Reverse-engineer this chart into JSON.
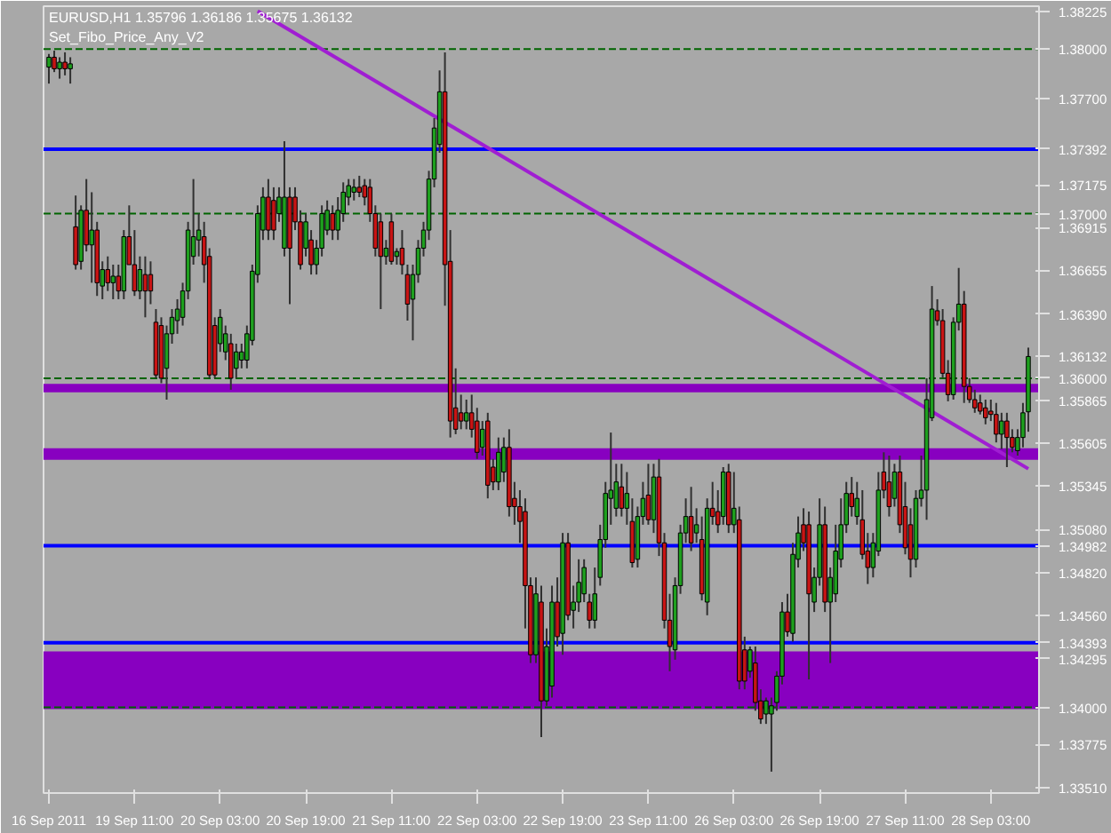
{
  "chart_data": {
    "type": "candlestick",
    "title": "EURUSD,H1  1.35796 1.36186 1.35675 1.36132",
    "subtitle": "Set_Fibo_Price_Any_V2",
    "categories": [
      "16 Sep 2011",
      null,
      null,
      null,
      null,
      null,
      null,
      null,
      null,
      null,
      null,
      null,
      null,
      null,
      null,
      null,
      "19 Sep 11:00",
      null,
      null,
      null,
      null,
      null,
      null,
      null,
      null,
      null,
      null,
      null,
      null,
      null,
      null,
      null,
      "20 Sep 03:00",
      null,
      null,
      null,
      null,
      null,
      null,
      null,
      null,
      null,
      null,
      null,
      null,
      null,
      null,
      null,
      "20 Sep 19:00",
      null,
      null,
      null,
      null,
      null,
      null,
      null,
      null,
      null,
      null,
      null,
      null,
      null,
      null,
      null,
      "21 Sep 11:00",
      null,
      null,
      null,
      null,
      null,
      null,
      null,
      null,
      null,
      null,
      null,
      null,
      null,
      null,
      null,
      "22 Sep 03:00",
      null,
      null,
      null,
      null,
      null,
      null,
      null,
      null,
      null,
      null,
      null,
      null,
      null,
      null,
      null,
      "22 Sep 19:00",
      null,
      null,
      null,
      null,
      null,
      null,
      null,
      null,
      null,
      null,
      null,
      null,
      null,
      null,
      null,
      "23 Sep 11:00",
      null,
      null,
      null,
      null,
      null,
      null,
      null,
      null,
      null,
      null,
      null,
      null,
      null,
      null,
      null,
      "26 Sep 03:00",
      null,
      null,
      null,
      null,
      null,
      null,
      null,
      null,
      null,
      null,
      null,
      null,
      null,
      null,
      null,
      "26 Sep 19:00",
      null,
      null,
      null,
      null,
      null,
      null,
      null,
      null,
      null,
      null,
      null,
      null,
      null,
      null,
      null,
      "27 Sep 11:00",
      null,
      null,
      null,
      null,
      null,
      null,
      null,
      null,
      null,
      null,
      null,
      null,
      null,
      null,
      null,
      "28 Sep 03:00",
      null,
      null,
      null,
      null,
      null,
      null,
      null
    ],
    "ohlc": [
      [
        1.3789,
        1.3797,
        1.3779,
        1.3795
      ],
      [
        1.3795,
        1.3799,
        1.3786,
        1.3788
      ],
      [
        1.3788,
        1.3795,
        1.3782,
        1.3792
      ],
      [
        1.3792,
        1.3798,
        1.3784,
        1.3788
      ],
      [
        1.3788,
        1.3795,
        1.3779,
        1.3791
      ],
      [
        1.3692,
        1.3711,
        1.3666,
        1.3669
      ],
      [
        1.3671,
        1.3705,
        1.3666,
        1.3702
      ],
      [
        1.3702,
        1.3721,
        1.3677,
        1.3681
      ],
      [
        1.3681,
        1.3713,
        1.3658,
        1.369
      ],
      [
        1.369,
        1.3695,
        1.365,
        1.3658
      ],
      [
        1.3656,
        1.3671,
        1.3648,
        1.3666
      ],
      [
        1.3666,
        1.3674,
        1.3653,
        1.3658
      ],
      [
        1.3658,
        1.3669,
        1.3648,
        1.3662
      ],
      [
        1.3662,
        1.3669,
        1.3648,
        1.3653
      ],
      [
        1.3653,
        1.369,
        1.3648,
        1.3686
      ],
      [
        1.3686,
        1.3705,
        1.3669,
        1.3669
      ],
      [
        1.3669,
        1.369,
        1.365,
        1.3653
      ],
      [
        1.3653,
        1.3674,
        1.3648,
        1.3666
      ],
      [
        1.3663,
        1.3674,
        1.3637,
        1.3653
      ],
      [
        1.3663,
        1.3671,
        1.3645,
        1.3653
      ],
      [
        1.3634,
        1.3642,
        1.36,
        1.3602
      ],
      [
        1.3632,
        1.3637,
        1.3597,
        1.36
      ],
      [
        1.3606,
        1.3632,
        1.3587,
        1.3627
      ],
      [
        1.3627,
        1.3642,
        1.3621,
        1.3637
      ],
      [
        1.3635,
        1.3648,
        1.3627,
        1.3642
      ],
      [
        1.3637,
        1.3658,
        1.3632,
        1.3653
      ],
      [
        1.3653,
        1.3695,
        1.3648,
        1.369
      ],
      [
        1.3674,
        1.3721,
        1.3669,
        1.3686
      ],
      [
        1.3684,
        1.37,
        1.3674,
        1.369
      ],
      [
        1.3686,
        1.3695,
        1.3658,
        1.3669
      ],
      [
        1.3674,
        1.3679,
        1.36,
        1.3602
      ],
      [
        1.3632,
        1.3637,
        1.36,
        1.3602
      ],
      [
        1.3621,
        1.3642,
        1.3616,
        1.3637
      ],
      [
        1.3616,
        1.3632,
        1.3611,
        1.3627
      ],
      [
        1.3621,
        1.3627,
        1.3593,
        1.36
      ],
      [
        1.3606,
        1.3621,
        1.36,
        1.3616
      ],
      [
        1.3611,
        1.3621,
        1.3606,
        1.3616
      ],
      [
        1.3611,
        1.3632,
        1.3606,
        1.3627
      ],
      [
        1.3623,
        1.3669,
        1.362,
        1.3665
      ],
      [
        1.3663,
        1.3705,
        1.3658,
        1.37
      ],
      [
        1.369,
        1.3716,
        1.3684,
        1.371
      ],
      [
        1.371,
        1.3721,
        1.3684,
        1.369
      ],
      [
        1.3708,
        1.3716,
        1.3684,
        1.369
      ],
      [
        1.37,
        1.3716,
        1.3695,
        1.371
      ],
      [
        1.3679,
        1.3744,
        1.3674,
        1.371
      ],
      [
        1.371,
        1.3716,
        1.3645,
        1.3679
      ],
      [
        1.371,
        1.3716,
        1.369,
        1.3695
      ],
      [
        1.3695,
        1.3702,
        1.3666,
        1.3669
      ],
      [
        1.3679,
        1.37,
        1.3674,
        1.3695
      ],
      [
        1.3684,
        1.369,
        1.3663,
        1.3669
      ],
      [
        1.3669,
        1.3684,
        1.3663,
        1.3679
      ],
      [
        1.3679,
        1.3705,
        1.3674,
        1.37
      ],
      [
        1.369,
        1.3708,
        1.3687,
        1.3702
      ],
      [
        1.37,
        1.3705,
        1.3684,
        1.369
      ],
      [
        1.369,
        1.371,
        1.3684,
        1.3702
      ],
      [
        1.37,
        1.3719,
        1.3695,
        1.3713
      ],
      [
        1.371,
        1.3721,
        1.3705,
        1.3717
      ],
      [
        1.3713,
        1.3721,
        1.3708,
        1.3716
      ],
      [
        1.3716,
        1.3723,
        1.371,
        1.3713
      ],
      [
        1.3717,
        1.3721,
        1.3705,
        1.371
      ],
      [
        1.3716,
        1.3721,
        1.3695,
        1.37
      ],
      [
        1.37,
        1.3705,
        1.3674,
        1.3679
      ],
      [
        1.3695,
        1.37,
        1.3642,
        1.3674
      ],
      [
        1.3674,
        1.3684,
        1.3669,
        1.3679
      ],
      [
        1.3695,
        1.37,
        1.3669,
        1.3671
      ],
      [
        1.3674,
        1.3679,
        1.3669,
        1.3677
      ],
      [
        1.3679,
        1.369,
        1.3663,
        1.3669
      ],
      [
        1.3663,
        1.3669,
        1.3635,
        1.3645
      ],
      [
        1.3648,
        1.3669,
        1.3623,
        1.3663
      ],
      [
        1.3663,
        1.3684,
        1.3658,
        1.3679
      ],
      [
        1.3679,
        1.3695,
        1.3674,
        1.369
      ],
      [
        1.369,
        1.3726,
        1.3684,
        1.3721
      ],
      [
        1.3721,
        1.3758,
        1.3716,
        1.3752
      ],
      [
        1.3742,
        1.3787,
        1.3737,
        1.3774
      ],
      [
        1.3774,
        1.3798,
        1.3644,
        1.3669
      ],
      [
        1.3671,
        1.369,
        1.3564,
        1.3574
      ],
      [
        1.3582,
        1.3606,
        1.3566,
        1.3569
      ],
      [
        1.3579,
        1.359,
        1.3569,
        1.3574
      ],
      [
        1.3574,
        1.3587,
        1.3569,
        1.3579
      ],
      [
        1.3579,
        1.359,
        1.3564,
        1.3569
      ],
      [
        1.3574,
        1.3582,
        1.3551,
        1.3555
      ],
      [
        1.3558,
        1.3574,
        1.3553,
        1.3569
      ],
      [
        1.3574,
        1.3579,
        1.3527,
        1.3535
      ],
      [
        1.3546,
        1.3551,
        1.3532,
        1.3537
      ],
      [
        1.3537,
        1.3564,
        1.3532,
        1.3555
      ],
      [
        1.3543,
        1.3564,
        1.3537,
        1.3558
      ],
      [
        1.3558,
        1.3569,
        1.3516,
        1.3522
      ],
      [
        1.3527,
        1.3537,
        1.3511,
        1.3522
      ],
      [
        1.3522,
        1.3532,
        1.35,
        1.3513
      ],
      [
        1.3519,
        1.3527,
        1.3448,
        1.3474
      ],
      [
        1.3474,
        1.3479,
        1.3427,
        1.3432
      ],
      [
        1.3432,
        1.3479,
        1.3427,
        1.3469
      ],
      [
        1.3464,
        1.3474,
        1.3382,
        1.3404
      ],
      [
        1.3404,
        1.3448,
        1.3401,
        1.3437
      ],
      [
        1.3413,
        1.3474,
        1.3406,
        1.3464
      ],
      [
        1.3464,
        1.3479,
        1.3437,
        1.3443
      ],
      [
        1.3445,
        1.3506,
        1.3432,
        1.35
      ],
      [
        1.35,
        1.3506,
        1.3453,
        1.3456
      ],
      [
        1.3459,
        1.3474,
        1.3448,
        1.3464
      ],
      [
        1.3464,
        1.349,
        1.3458,
        1.3476
      ],
      [
        1.3469,
        1.349,
        1.3464,
        1.3485
      ],
      [
        1.3464,
        1.3469,
        1.3448,
        1.3453
      ],
      [
        1.3453,
        1.3485,
        1.3448,
        1.3469
      ],
      [
        1.3479,
        1.3511,
        1.3474,
        1.3502
      ],
      [
        1.3502,
        1.3537,
        1.3497,
        1.353
      ],
      [
        1.3527,
        1.3567,
        1.3511,
        1.3532
      ],
      [
        1.3521,
        1.3548,
        1.3516,
        1.3537
      ],
      [
        1.3534,
        1.3548,
        1.3516,
        1.3521
      ],
      [
        1.3521,
        1.3543,
        1.3511,
        1.353
      ],
      [
        1.3513,
        1.3527,
        1.3485,
        1.3488
      ],
      [
        1.349,
        1.3522,
        1.3485,
        1.3516
      ],
      [
        1.3516,
        1.3537,
        1.3511,
        1.3527
      ],
      [
        1.3529,
        1.3548,
        1.3511,
        1.3514
      ],
      [
        1.3514,
        1.3548,
        1.3506,
        1.354
      ],
      [
        1.354,
        1.3551,
        1.3492,
        1.35
      ],
      [
        1.35,
        1.3506,
        1.3448,
        1.3453
      ],
      [
        1.3453,
        1.3469,
        1.3422,
        1.3437
      ],
      [
        1.3435,
        1.3479,
        1.3429,
        1.3474
      ],
      [
        1.3474,
        1.3511,
        1.3469,
        1.3506
      ],
      [
        1.3506,
        1.3527,
        1.35,
        1.3516
      ],
      [
        1.3516,
        1.3534,
        1.3495,
        1.35
      ],
      [
        1.3506,
        1.3521,
        1.35,
        1.3511
      ],
      [
        1.3502,
        1.3516,
        1.3465,
        1.3469
      ],
      [
        1.3464,
        1.3527,
        1.3456,
        1.3521
      ],
      [
        1.3521,
        1.3537,
        1.3511,
        1.3516
      ],
      [
        1.3519,
        1.3532,
        1.3506,
        1.3511
      ],
      [
        1.3516,
        1.3546,
        1.3511,
        1.3543
      ],
      [
        1.3543,
        1.3548,
        1.3506,
        1.3511
      ],
      [
        1.3511,
        1.3543,
        1.3506,
        1.3521
      ],
      [
        1.3514,
        1.3522,
        1.3411,
        1.3416
      ],
      [
        1.3435,
        1.3443,
        1.3411,
        1.3416
      ],
      [
        1.3422,
        1.3437,
        1.3418,
        1.3435
      ],
      [
        1.3427,
        1.3437,
        1.3398,
        1.3403
      ],
      [
        1.3404,
        1.3411,
        1.339,
        1.3393
      ],
      [
        1.3396,
        1.3406,
        1.339,
        1.3404
      ],
      [
        1.3396,
        1.3406,
        1.3361,
        1.3401
      ],
      [
        1.3403,
        1.3422,
        1.3398,
        1.3419
      ],
      [
        1.3419,
        1.3464,
        1.3414,
        1.3458
      ],
      [
        1.3458,
        1.3469,
        1.3443,
        1.3446
      ],
      [
        1.3445,
        1.35,
        1.344,
        1.3493
      ],
      [
        1.349,
        1.3516,
        1.3485,
        1.3506
      ],
      [
        1.3511,
        1.3521,
        1.3495,
        1.35
      ],
      [
        1.3511,
        1.3519,
        1.3417,
        1.3469
      ],
      [
        1.3464,
        1.3485,
        1.3458,
        1.3479
      ],
      [
        1.3479,
        1.3527,
        1.3474,
        1.3511
      ],
      [
        1.3511,
        1.3522,
        1.3458,
        1.3464
      ],
      [
        1.3464,
        1.3485,
        1.3427,
        1.3479
      ],
      [
        1.3469,
        1.3511,
        1.3464,
        1.3495
      ],
      [
        1.349,
        1.3527,
        1.3485,
        1.3511
      ],
      [
        1.3511,
        1.3537,
        1.3506,
        1.353
      ],
      [
        1.353,
        1.354,
        1.3516,
        1.3522
      ],
      [
        1.3516,
        1.3537,
        1.3511,
        1.3527
      ],
      [
        1.3514,
        1.3532,
        1.349,
        1.3493
      ],
      [
        1.3495,
        1.3506,
        1.3475,
        1.3485
      ],
      [
        1.3485,
        1.3506,
        1.3479,
        1.35
      ],
      [
        1.3495,
        1.3543,
        1.3492,
        1.3532
      ],
      [
        1.3543,
        1.3555,
        1.3527,
        1.3532
      ],
      [
        1.3537,
        1.3553,
        1.3516,
        1.3522
      ],
      [
        1.3527,
        1.3548,
        1.3522,
        1.3543
      ],
      [
        1.3543,
        1.3553,
        1.3506,
        1.3511
      ],
      [
        1.3522,
        1.3537,
        1.3493,
        1.3497
      ],
      [
        1.3511,
        1.3521,
        1.3479,
        1.349
      ],
      [
        1.349,
        1.3532,
        1.3485,
        1.3527
      ],
      [
        1.3527,
        1.3553,
        1.3522,
        1.3532
      ],
      [
        1.3532,
        1.36,
        1.3514,
        1.3587
      ],
      [
        1.3576,
        1.3656,
        1.3574,
        1.3642
      ],
      [
        1.3641,
        1.3648,
        1.3632,
        1.3635
      ],
      [
        1.3635,
        1.3642,
        1.36,
        1.3603
      ],
      [
        1.3603,
        1.3611,
        1.3586,
        1.359
      ],
      [
        1.359,
        1.3637,
        1.3587,
        1.3634
      ],
      [
        1.3634,
        1.3667,
        1.3629,
        1.3645
      ],
      [
        1.3645,
        1.3653,
        1.3585,
        1.3595
      ],
      [
        1.3595,
        1.36,
        1.3585,
        1.3587
      ],
      [
        1.3587,
        1.3593,
        1.3579,
        1.3582
      ],
      [
        1.3585,
        1.359,
        1.3578,
        1.358
      ],
      [
        1.3582,
        1.3587,
        1.3572,
        1.3576
      ],
      [
        1.358,
        1.3587,
        1.3574,
        1.3578
      ],
      [
        1.3578,
        1.3585,
        1.3561,
        1.3566
      ],
      [
        1.3566,
        1.3579,
        1.3557,
        1.3574
      ],
      [
        1.3574,
        1.3579,
        1.3546,
        1.3564
      ],
      [
        1.3564,
        1.3569,
        1.3555,
        1.3558
      ],
      [
        1.3556,
        1.3569,
        1.3553,
        1.3564
      ],
      [
        1.3564,
        1.3585,
        1.3558,
        1.3579
      ],
      [
        1.35796,
        1.36186,
        1.35675,
        1.36132
      ]
    ],
    "colors": [
      "#1ea01e",
      "#c81414",
      "#1ea01e",
      "#c81414",
      "#1ea01e",
      "#c81414",
      "#1ea01e",
      "#c81414",
      "#1ea01e",
      "#c81414",
      "#1ea01e",
      "#c81414",
      "#1ea01e",
      "#c81414",
      "#1ea01e",
      "#c81414",
      "#c81414",
      "#1ea01e",
      "#c81414",
      "#c81414",
      "#c81414",
      "#c81414",
      "#1ea01e",
      "#1ea01e",
      "#1ea01e",
      "#1ea01e",
      "#1ea01e",
      "#1ea01e",
      "#1ea01e",
      "#c81414",
      "#c81414",
      "#c81414",
      "#1ea01e",
      "#1ea01e",
      "#c81414",
      "#1ea01e",
      "#1ea01e",
      "#1ea01e",
      "#1ea01e",
      "#1ea01e",
      "#1ea01e",
      "#c81414",
      "#c81414",
      "#1ea01e",
      "#1ea01e",
      "#c81414",
      "#c81414",
      "#c81414",
      "#1ea01e",
      "#c81414",
      "#1ea01e",
      "#1ea01e",
      "#1ea01e",
      "#c81414",
      "#1ea01e",
      "#1ea01e",
      "#1ea01e",
      "#1ea01e",
      "#c81414",
      "#c81414",
      "#c81414",
      "#c81414",
      "#c81414",
      "#1ea01e",
      "#c81414",
      "#1ea01e",
      "#c81414",
      "#c81414",
      "#1ea01e",
      "#1ea01e",
      "#1ea01e",
      "#1ea01e",
      "#1ea01e",
      "#1ea01e",
      "#c81414",
      "#c81414",
      "#c81414",
      "#c81414",
      "#1ea01e",
      "#c81414",
      "#c81414",
      "#1ea01e",
      "#c81414",
      "#c81414",
      "#1ea01e",
      "#1ea01e",
      "#c81414",
      "#c81414",
      "#c81414",
      "#c81414",
      "#c81414",
      "#1ea01e",
      "#c81414",
      "#1ea01e",
      "#1ea01e",
      "#c81414",
      "#1ea01e",
      "#c81414",
      "#1ea01e",
      "#1ea01e",
      "#1ea01e",
      "#c81414",
      "#1ea01e",
      "#1ea01e",
      "#1ea01e",
      "#1ea01e",
      "#1ea01e",
      "#c81414",
      "#1ea01e",
      "#c81414",
      "#1ea01e",
      "#1ea01e",
      "#c81414",
      "#1ea01e",
      "#c81414",
      "#c81414",
      "#c81414",
      "#1ea01e",
      "#1ea01e",
      "#1ea01e",
      "#c81414",
      "#1ea01e",
      "#c81414",
      "#1ea01e",
      "#c81414",
      "#c81414",
      "#1ea01e",
      "#c81414",
      "#1ea01e",
      "#c81414",
      "#c81414",
      "#1ea01e",
      "#c81414",
      "#c81414",
      "#1ea01e",
      "#1ea01e",
      "#1ea01e",
      "#1ea01e",
      "#c81414",
      "#1ea01e",
      "#1ea01e",
      "#c81414",
      "#c81414",
      "#1ea01e",
      "#1ea01e",
      "#c81414",
      "#1ea01e",
      "#1ea01e",
      "#1ea01e",
      "#1ea01e",
      "#c81414",
      "#1ea01e",
      "#c81414",
      "#c81414",
      "#1ea01e",
      "#1ea01e",
      "#c81414",
      "#c81414",
      "#1ea01e",
      "#c81414",
      "#c81414",
      "#c81414",
      "#1ea01e",
      "#1ea01e",
      "#1ea01e",
      "#1ea01e",
      "#c81414",
      "#c81414",
      "#c81414",
      "#1ea01e",
      "#1ea01e",
      "#c81414",
      "#c81414",
      "#c81414",
      "#c81414",
      "#c81414",
      "#c81414",
      "#c81414",
      "#1ea01e",
      "#c81414",
      "#c81414",
      "#1ea01e",
      "#1ea01e",
      "#1ea01e"
    ],
    "series": [
      {
        "type": "line",
        "color": "#a01ed2",
        "values": [
          null,
          null,
          null,
          null,
          null,
          null,
          null,
          null,
          null,
          null,
          null,
          null,
          null,
          null,
          null,
          null,
          null,
          null,
          null,
          null,
          null,
          null,
          null,
          null,
          null,
          null,
          null,
          null,
          null,
          null,
          null,
          null,
          null,
          null,
          null,
          null,
          null,
          null,
          null,
          1.3823,
          null,
          null,
          null,
          null,
          null,
          null,
          null,
          null,
          null,
          null,
          null,
          null,
          null,
          null,
          null,
          null,
          null,
          null,
          null,
          null,
          null,
          null,
          null,
          null,
          null,
          null,
          null,
          null,
          null,
          null,
          null,
          null,
          null,
          null,
          null,
          null,
          null,
          null,
          null,
          null,
          null,
          null,
          null,
          null,
          null,
          null,
          null,
          null,
          null,
          null,
          null,
          null,
          null,
          null,
          null,
          null,
          null,
          null,
          null,
          null,
          null,
          null,
          null,
          null,
          null,
          null,
          null,
          null,
          null,
          null,
          null,
          null,
          null,
          null,
          null,
          null,
          null,
          null,
          null,
          null,
          null,
          null,
          null,
          null,
          null,
          null,
          null,
          null,
          null,
          null,
          null,
          null,
          null,
          null,
          null,
          null,
          null,
          null,
          null,
          null,
          null,
          null,
          null,
          null,
          null,
          null,
          null,
          null,
          null,
          null,
          null,
          null,
          null,
          null,
          null,
          null,
          null,
          null,
          null,
          null,
          null,
          null,
          null,
          null,
          null,
          null,
          null,
          null,
          null,
          null,
          null,
          null,
          null,
          null,
          null,
          null,
          null,
          null,
          null,
          null,
          null,
          null,
          null,
          1.3545
        ]
      }
    ],
    "ylim": [
      1.3348,
      1.3826
    ],
    "yticks": [
      {
        "value": 1.38225,
        "label": "1.38225"
      },
      {
        "value": 1.377,
        "label": "1.37700"
      },
      {
        "value": 1.37175,
        "label": "1.37175"
      },
      {
        "value": 1.36915,
        "label": "1.36915"
      },
      {
        "value": 1.36655,
        "label": "1.36655"
      },
      {
        "value": 1.3639,
        "label": "1.36390"
      },
      {
        "value": 1.36132,
        "label": "1.36132"
      },
      {
        "value": 1.35865,
        "label": "1.35865"
      },
      {
        "value": 1.35605,
        "label": "1.35605"
      },
      {
        "value": 1.35345,
        "label": "1.35345"
      },
      {
        "value": 1.3508,
        "label": "1.35080"
      },
      {
        "value": 1.3482,
        "label": "1.34820"
      },
      {
        "value": 1.3456,
        "label": "1.34560"
      },
      {
        "value": 1.34295,
        "label": "1.34295"
      },
      {
        "value": 1.33775,
        "label": "1.33775"
      },
      {
        "value": 1.3351,
        "label": "1.33510"
      }
    ],
    "ref_lines": [
      {
        "axis": "y",
        "value": 1.38,
        "label": "1.38000",
        "color": "#006400",
        "line_style": "dashed"
      },
      {
        "axis": "y",
        "value": 1.37392,
        "label": "1.37392",
        "color": "#0000ff",
        "line_style": "solid"
      },
      {
        "axis": "y",
        "value": 1.37,
        "label": "1.37000",
        "color": "#006400",
        "line_style": "dashed"
      },
      {
        "axis": "y",
        "value": 1.36,
        "label": "1.36000",
        "color": "#006400",
        "line_style": "dashed"
      },
      {
        "axis": "y",
        "value": 1.34982,
        "label": "1.34982",
        "color": "#0000ff",
        "line_style": "solid"
      },
      {
        "axis": "y",
        "value": 1.34393,
        "label": "1.34393",
        "color": "#0000ff",
        "line_style": "solid"
      },
      {
        "axis": "y",
        "value": 1.34,
        "label": "1.34000",
        "color": "#006400",
        "line_style": "dashed"
      }
    ],
    "bands": [
      {
        "axis": "y",
        "from": 1.35914,
        "to": 1.35966,
        "color": "#8800c0"
      },
      {
        "axis": "y",
        "from": 1.35505,
        "to": 1.35574,
        "color": "#8800c0"
      },
      {
        "axis": "y",
        "from": 1.3399,
        "to": 1.3434,
        "color": "#8800c0"
      }
    ],
    "grid": false
  }
}
